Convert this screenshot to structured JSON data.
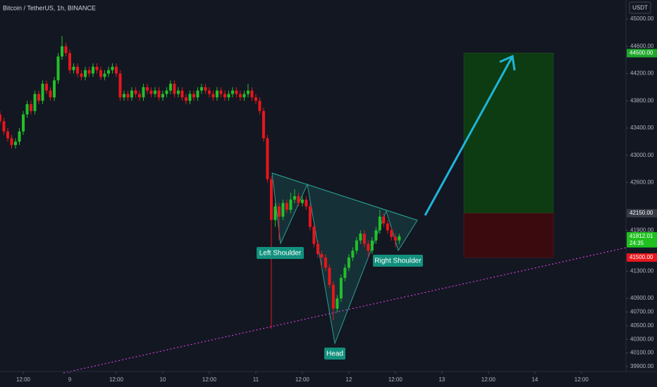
{
  "chart_data": {
    "type": "candlestick",
    "title": "Bitcoin / TetherUS, 1h, BINANCE",
    "currency": "USDT",
    "up_color": "#22c02a",
    "down_color": "#e8161c",
    "x": [
      6,
      7,
      8,
      9,
      10,
      11,
      12,
      13,
      14,
      15,
      16,
      17,
      18,
      19,
      20,
      21,
      22,
      23,
      24,
      25,
      26,
      27,
      28,
      29,
      30,
      31,
      32,
      33,
      34,
      35,
      36,
      37,
      38,
      39,
      40,
      41,
      42,
      43,
      44,
      45,
      46,
      47,
      48,
      49,
      50,
      51,
      52,
      53,
      54,
      55,
      56,
      57,
      58,
      59,
      60,
      61,
      62,
      63,
      64,
      65,
      66,
      67,
      68,
      69,
      70,
      71,
      72,
      73,
      74,
      75,
      76,
      77,
      78,
      79,
      80,
      81,
      82,
      83,
      84,
      85,
      86,
      87,
      88,
      89,
      90,
      91,
      92,
      93,
      94,
      95,
      96,
      97,
      98,
      99,
      100,
      101,
      102,
      103,
      104,
      105,
      106,
      107,
      108,
      109
    ],
    "open": [
      43600,
      43500,
      43350,
      43250,
      43150,
      43200,
      43350,
      43600,
      43750,
      43650,
      43900,
      43800,
      44050,
      43950,
      43850,
      44100,
      44450,
      44600,
      44500,
      44250,
      44300,
      44200,
      44150,
      44250,
      44200,
      44300,
      44250,
      44150,
      44200,
      44250,
      44300,
      44200,
      43850,
      43900,
      43850,
      43950,
      43900,
      43850,
      44000,
      43950,
      43900,
      43950,
      43850,
      43900,
      43950,
      44050,
      43900,
      43950,
      43850,
      43800,
      43900,
      43850,
      43950,
      44000,
      43950,
      43900,
      43850,
      43950,
      43900,
      43850,
      43900,
      43950,
      43900,
      43850,
      43900,
      43950,
      43850,
      43800,
      43650,
      43250,
      42650,
      42050,
      42250,
      42100,
      42300,
      42200,
      42350,
      42400,
      42300,
      42350,
      42250,
      41950,
      41700,
      41550,
      41500,
      41350,
      41100,
      40750,
      40900,
      41200,
      41350,
      41500,
      41600,
      41750,
      41850,
      41700,
      41600,
      41750,
      41900,
      42100,
      42000,
      41900,
      41800,
      41750
    ],
    "high": [
      43650,
      43550,
      43400,
      43300,
      43250,
      43400,
      43650,
      43800,
      43800,
      43950,
      43950,
      44100,
      44100,
      44000,
      44150,
      44500,
      44750,
      44650,
      44550,
      44350,
      44350,
      44250,
      44300,
      44300,
      44350,
      44350,
      44300,
      44250,
      44300,
      44350,
      44350,
      44250,
      43950,
      43950,
      44000,
      44000,
      43950,
      44050,
      44050,
      44000,
      44000,
      44000,
      43950,
      44000,
      44100,
      44100,
      44000,
      44000,
      43900,
      43950,
      43950,
      44000,
      44050,
      44050,
      44000,
      43950,
      44000,
      44000,
      43950,
      43950,
      44000,
      44000,
      43950,
      43950,
      44050,
      44000,
      43900,
      43850,
      43700,
      43300,
      42700,
      42300,
      42300,
      42350,
      42350,
      42450,
      42500,
      42450,
      42400,
      42400,
      42300,
      42000,
      41750,
      41600,
      41550,
      41400,
      41150,
      40950,
      41250,
      41400,
      41550,
      41650,
      41800,
      41900,
      41900,
      41750,
      41800,
      41950,
      42200,
      42150,
      42050,
      41950,
      41850,
      41850
    ],
    "low": [
      43450,
      43300,
      43200,
      43100,
      43100,
      43150,
      43300,
      43550,
      43600,
      43600,
      43750,
      43750,
      43900,
      43800,
      43800,
      44050,
      44400,
      44450,
      44200,
      44200,
      44150,
      44100,
      44100,
      44150,
      44150,
      44200,
      44100,
      44100,
      44150,
      44200,
      44150,
      43800,
      43800,
      43800,
      43800,
      43850,
      43800,
      43800,
      43900,
      43850,
      43850,
      43800,
      43800,
      43850,
      43900,
      43850,
      43850,
      43800,
      43750,
      43750,
      43800,
      43800,
      43900,
      43900,
      43850,
      43800,
      43800,
      43850,
      43800,
      43800,
      43850,
      43850,
      43800,
      43800,
      43850,
      43800,
      43750,
      43600,
      43200,
      42600,
      40450,
      41950,
      41750,
      42050,
      42150,
      42150,
      42300,
      42250,
      42250,
      42200,
      41900,
      41650,
      41500,
      41350,
      41300,
      41050,
      40580,
      40700,
      40850,
      41150,
      41300,
      41450,
      41550,
      41700,
      41650,
      41500,
      41550,
      41700,
      41850,
      41950,
      41850,
      41750,
      41650,
      41700
    ],
    "close": [
      43500,
      43350,
      43250,
      43150,
      43200,
      43350,
      43600,
      43750,
      43650,
      43900,
      43800,
      44050,
      43950,
      43850,
      44100,
      44450,
      44600,
      44500,
      44250,
      44300,
      44200,
      44150,
      44250,
      44200,
      44300,
      44250,
      44150,
      44200,
      44250,
      44300,
      44200,
      43850,
      43900,
      43850,
      43950,
      43900,
      43850,
      44000,
      43950,
      43900,
      43950,
      43850,
      43900,
      43950,
      44050,
      43900,
      43950,
      43850,
      43800,
      43900,
      43850,
      43950,
      44000,
      43950,
      43900,
      43850,
      43950,
      43900,
      43850,
      43900,
      43950,
      43900,
      43850,
      43900,
      43950,
      43850,
      43800,
      43650,
      43250,
      42650,
      42050,
      42250,
      42100,
      42300,
      42200,
      42350,
      42400,
      42300,
      42350,
      42250,
      41950,
      41700,
      41550,
      41500,
      41350,
      41100,
      40750,
      40900,
      41200,
      41350,
      41500,
      41600,
      41750,
      41850,
      41700,
      41600,
      41750,
      41900,
      42100,
      42000,
      41900,
      41800,
      41750,
      41812
    ],
    "xlim": [
      6,
      167.5
    ],
    "xticks": [
      {
        "value": 12,
        "label": "12:00"
      },
      {
        "value": 24,
        "label": "9"
      },
      {
        "value": 36,
        "label": "12:00"
      },
      {
        "value": 48,
        "label": "10"
      },
      {
        "value": 60,
        "label": "12:00"
      },
      {
        "value": 72,
        "label": "11"
      },
      {
        "value": 84,
        "label": "12:00"
      },
      {
        "value": 96,
        "label": "12"
      },
      {
        "value": 108,
        "label": "12:00"
      },
      {
        "value": 120,
        "label": "13"
      },
      {
        "value": 132,
        "label": "12:00"
      },
      {
        "value": 144,
        "label": "14"
      },
      {
        "value": 156,
        "label": "12:00"
      }
    ],
    "ylim": [
      39827,
      45279
    ],
    "yticks": [
      {
        "value": 45000,
        "label": "45000.00"
      },
      {
        "value": 44600,
        "label": "44600.00"
      },
      {
        "value": 44200,
        "label": "44200.00"
      },
      {
        "value": 43800,
        "label": "43800.00"
      },
      {
        "value": 43400,
        "label": "43400.00"
      },
      {
        "value": 43000,
        "label": "43000.00"
      },
      {
        "value": 42600,
        "label": "42600.00"
      },
      {
        "value": 41900,
        "label": "41900.00"
      },
      {
        "value": 41300,
        "label": "41300.00"
      },
      {
        "value": 40900,
        "label": "40900.00"
      },
      {
        "value": 40700,
        "label": "40700.00"
      },
      {
        "value": 40500,
        "label": "40500.00"
      },
      {
        "value": 40300,
        "label": "40300.00"
      },
      {
        "value": 40100,
        "label": "40100.00"
      },
      {
        "value": 39900,
        "label": "39900.00"
      }
    ],
    "position": {
      "target": {
        "value": 44500,
        "label": "44500.00"
      },
      "entry": {
        "value": 42150,
        "label": "42150.00"
      },
      "stop": {
        "value": 41500,
        "label": "41500.00"
      }
    },
    "last_price": {
      "value": 41812.01,
      "label": "41812.01"
    },
    "countdown": "24:35",
    "annotations": [
      "Left Shoulder",
      "Head",
      "Right Shoulder"
    ]
  }
}
